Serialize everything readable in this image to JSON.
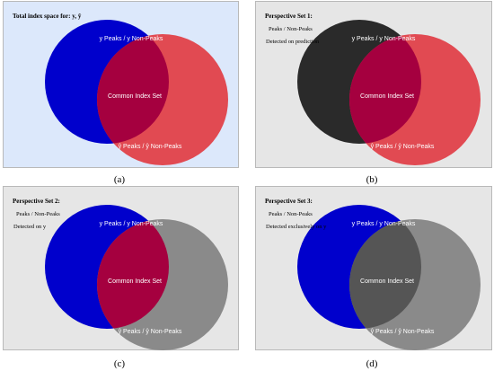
{
  "panels": [
    {
      "id": "a",
      "heading": "Total index space for: y, ŷ",
      "lines": [],
      "caption": "(a)",
      "bg": "#dce8fb",
      "left_fill": "#0000cc",
      "right_fill": "#e14a52",
      "overlap_fill": "#a5003f",
      "label_top": "y Peaks / y Non-Peaks",
      "label_center": "Common Index Set",
      "label_bottom": "ŷ Peaks / ŷ Non-Peaks"
    },
    {
      "id": "b",
      "heading": "Perspective Set 1:",
      "lines": [
        "Peaks / Non-Peaks",
        "Detected on prediction"
      ],
      "caption": "(b)",
      "bg": "#e6e6e6",
      "left_fill": "#2a2a2a",
      "right_fill": "#e14a52",
      "overlap_fill": "#a5003f",
      "label_top": "y Peaks / y Non-Peaks",
      "label_center": "Common Index Set",
      "label_bottom": "ŷ Peaks / ŷ Non-Peaks"
    },
    {
      "id": "c",
      "heading": "Perspective Set 2:",
      "lines": [
        "Peaks / Non-Peaks",
        "Detected on y"
      ],
      "caption": "(c)",
      "bg": "#e6e6e6",
      "left_fill": "#0000cc",
      "right_fill": "#8a8a8a",
      "overlap_fill": "#a5003f",
      "label_top": "y Peaks / y Non-Peaks",
      "label_center": "Common Index Set",
      "label_bottom": "ŷ Peaks / ŷ Non-Peaks"
    },
    {
      "id": "d",
      "heading": "Perspective Set 3:",
      "lines": [
        "Peaks / Non-Peaks",
        "Detected exclusively on y"
      ],
      "caption": "(d)",
      "bg": "#e6e6e6",
      "left_fill": "#0000cc",
      "right_fill": "#8a8a8a",
      "overlap_fill": "#555555",
      "label_top": "y Peaks / y Non-Peaks",
      "label_center": "Common Index Set",
      "label_bottom": "ŷ Peaks / ŷ Non-Peaks"
    }
  ]
}
